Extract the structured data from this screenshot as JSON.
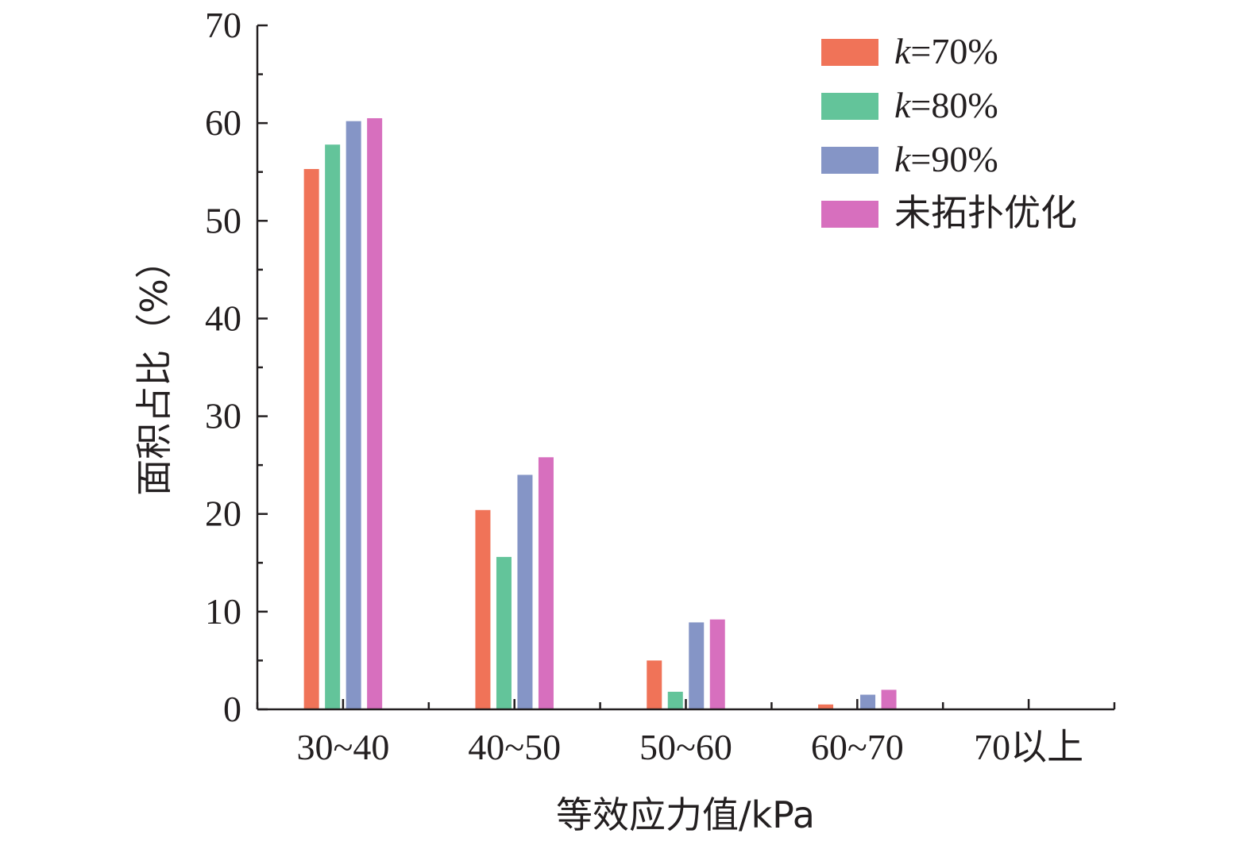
{
  "chart_data": {
    "type": "bar",
    "xlabel": "等效应力值/kPa",
    "ylabel": "面积占比（%）",
    "ylim": [
      0,
      70
    ],
    "yticks": [
      "0",
      "10",
      "20",
      "30",
      "40",
      "50",
      "60",
      "70"
    ],
    "categories": [
      "30~40",
      "40~50",
      "50~60",
      "60~70",
      "70以上"
    ],
    "series": [
      {
        "name": "k=70%",
        "legend_prefix": "k",
        "legend_suffix": "=70%",
        "color": "#f07358",
        "values": [
          55.3,
          20.4,
          5.0,
          0.5,
          0
        ]
      },
      {
        "name": "k=80%",
        "legend_prefix": "k",
        "legend_suffix": "=80%",
        "color": "#63c49a",
        "values": [
          57.8,
          15.6,
          1.8,
          0,
          0
        ]
      },
      {
        "name": "k=90%",
        "legend_prefix": "k",
        "legend_suffix": "=90%",
        "color": "#8595c6",
        "values": [
          60.2,
          24.0,
          8.9,
          1.5,
          0
        ]
      },
      {
        "name": "未拓扑优化",
        "legend_prefix": "",
        "legend_suffix": "未拓扑优化",
        "color": "#d76fbe",
        "values": [
          60.5,
          25.8,
          9.2,
          2.0,
          0
        ]
      }
    ],
    "legend_position": "top-right",
    "grid": false
  }
}
